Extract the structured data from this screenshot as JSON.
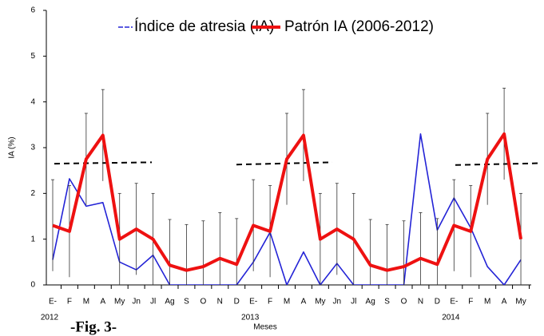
{
  "chart_data": {
    "type": "line",
    "caption": "-Fig. 3-",
    "x_label": "Meses",
    "y_label": "IA (%)",
    "categories": [
      "E-",
      "F",
      "M",
      "A",
      "My",
      "Jn",
      "Jl",
      "Ag",
      "S",
      "O",
      "N",
      "D",
      "E-",
      "F",
      "M",
      "A",
      "My",
      "Jn",
      "Jl",
      "Ag",
      "S",
      "O",
      "N",
      "D",
      "E-",
      "F",
      "M",
      "A",
      "My"
    ],
    "year_labels": [
      "2012",
      "2013",
      "2014"
    ],
    "ylim": [
      0,
      6
    ],
    "yticks": [
      0,
      1,
      2,
      3,
      4,
      5,
      6
    ],
    "series": [
      {
        "name": "Índice de atresia (IA)",
        "color": "#2323d6",
        "values": [
          0.55,
          2.32,
          1.72,
          1.8,
          0.5,
          0.33,
          0.65,
          0,
          0,
          0,
          0,
          0,
          0.5,
          1.15,
          0,
          0.72,
          0,
          0.47,
          0,
          0,
          0,
          0,
          3.3,
          1.2,
          1.9,
          1.25,
          0.4,
          0,
          0.55
        ]
      },
      {
        "name": "Patrón IA (2006-2012)",
        "color": "#ee1111",
        "values": [
          1.3,
          1.17,
          2.75,
          3.27,
          1.0,
          1.22,
          1.0,
          0.43,
          0.32,
          0.4,
          0.58,
          0.45,
          1.3,
          1.17,
          2.75,
          3.27,
          1.0,
          1.22,
          1.0,
          0.43,
          0.32,
          0.4,
          0.58,
          0.45,
          1.3,
          1.17,
          2.75,
          3.3,
          1.0
        ],
        "errors": [
          1,
          1,
          1,
          1,
          1,
          1,
          1,
          1,
          1,
          1,
          1,
          1,
          1,
          1,
          1,
          1,
          1,
          1,
          1,
          1,
          1,
          1,
          1,
          1,
          1,
          1,
          1,
          1,
          1
        ]
      }
    ],
    "reference_lines": [
      [
        2.65,
        2.68
      ],
      [
        2.63,
        2.68
      ],
      [
        2.62,
        2.66
      ]
    ]
  }
}
